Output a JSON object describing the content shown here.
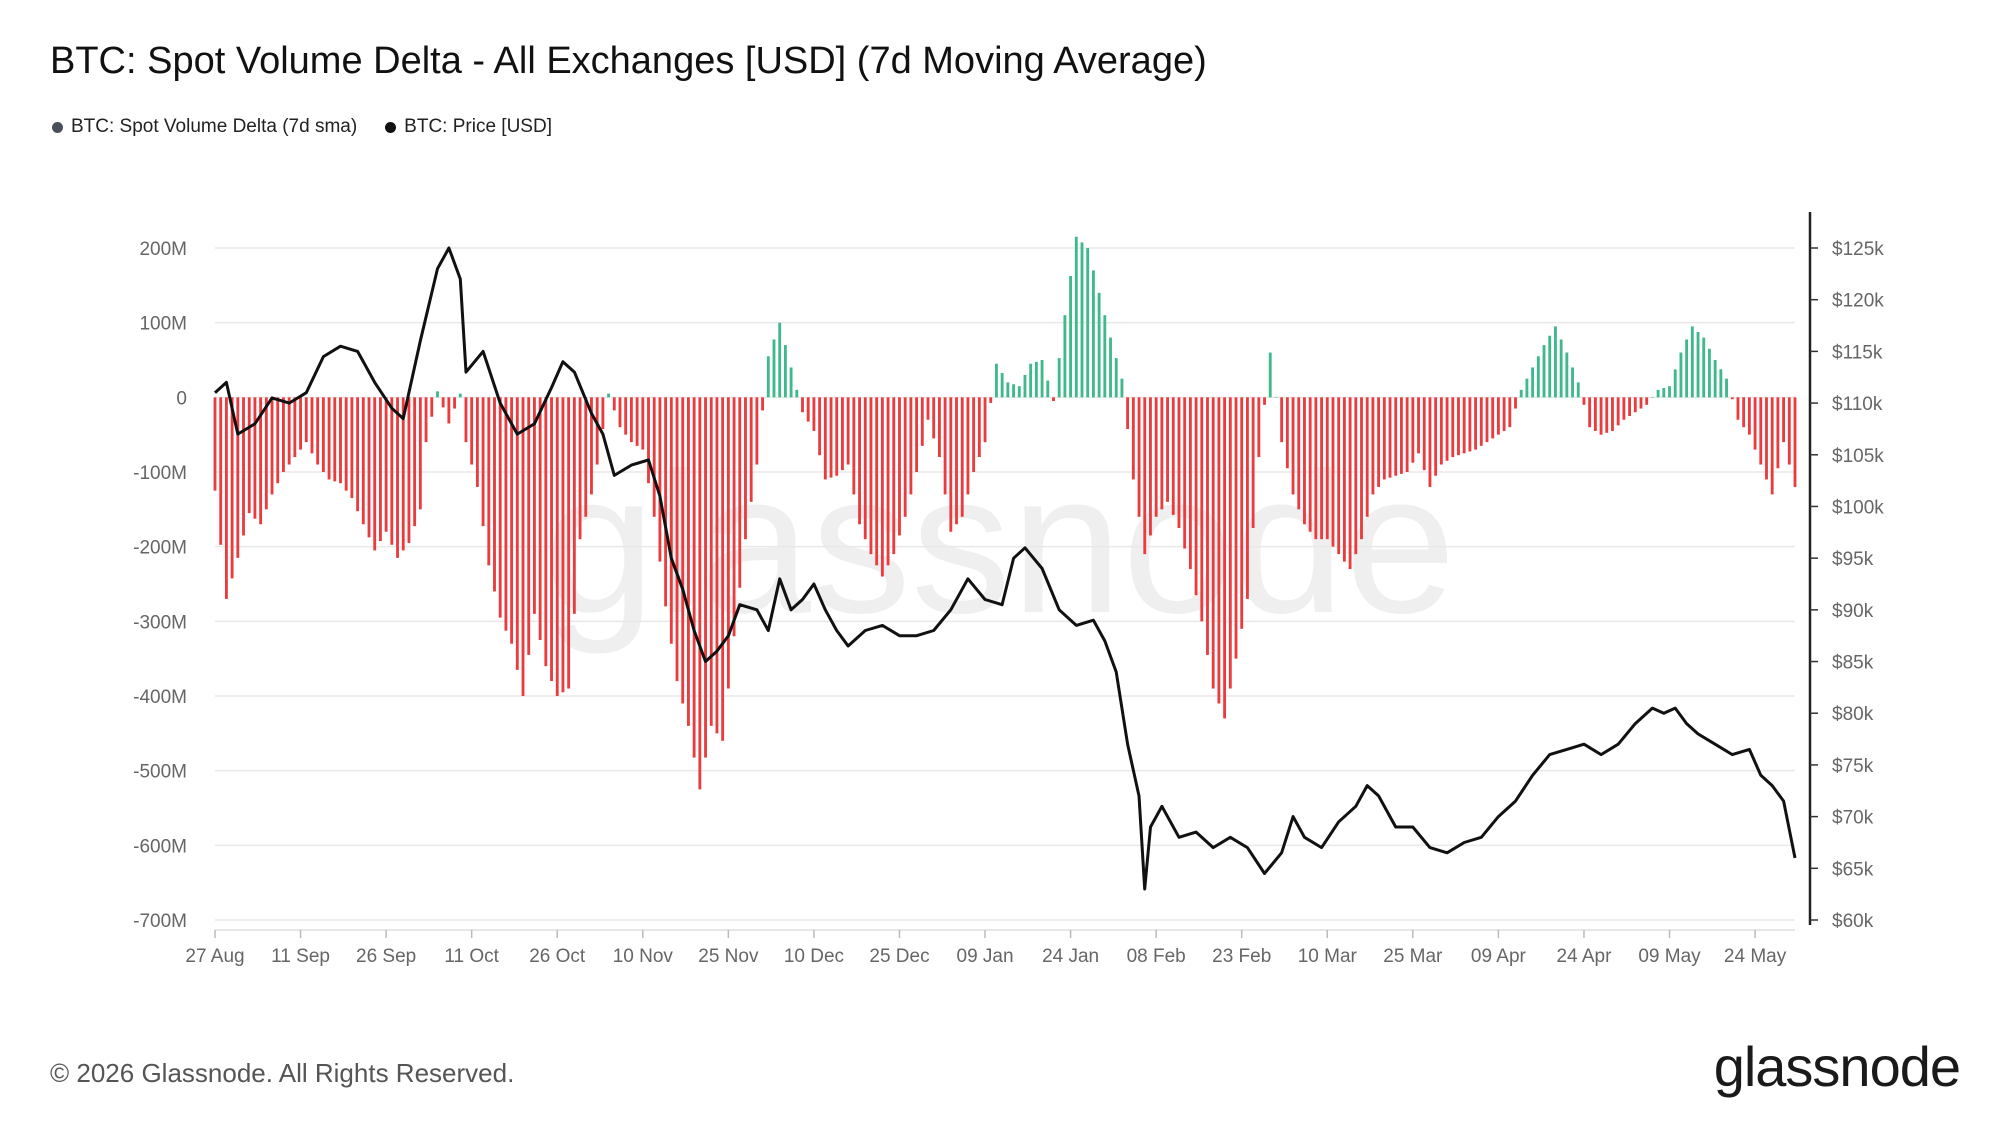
{
  "title": "BTC: Spot Volume Delta - All Exchanges [USD] (7d Moving Average)",
  "legend": [
    {
      "label": "BTC: Spot Volume Delta (7d sma)",
      "color": "#4a4f5c"
    },
    {
      "label": "BTC: Price [USD]",
      "color": "#111111"
    }
  ],
  "footer": "© 2026 Glassnode. All Rights Reserved.",
  "logo": "glassnode",
  "watermark": "glassnode",
  "colors": {
    "positive": "#3fb98b",
    "negative": "#ea3c3f",
    "price": "#111111",
    "grid": "#e9e9e9"
  },
  "chart_data": {
    "type": "bar",
    "x_start": "2025-08-27",
    "x_end": "2026-05-31",
    "x_ticks": [
      "27 Aug",
      "11 Sep",
      "26 Sep",
      "11 Oct",
      "26 Oct",
      "10 Nov",
      "25 Nov",
      "10 Dec",
      "25 Dec",
      "09 Jan",
      "24 Jan",
      "08 Feb",
      "23 Feb",
      "10 Mar",
      "25 Mar",
      "09 Apr",
      "24 Apr",
      "09 May",
      "24 May"
    ],
    "y_left_ticks": [
      "200M",
      "100M",
      "0",
      "-100M",
      "-200M",
      "-300M",
      "-400M",
      "-500M",
      "-600M",
      "-700M"
    ],
    "y_right_ticks": [
      "$125k",
      "$120k",
      "$115k",
      "$110k",
      "$105k",
      "$100k",
      "$95k",
      "$90k",
      "$85k",
      "$80k",
      "$75k",
      "$70k",
      "$65k",
      "$60k"
    ],
    "ylim_left": [
      -700,
      200
    ],
    "ylim_right": [
      60,
      125
    ],
    "left_unit": "USD millions",
    "right_unit": "USD thousands",
    "series": [
      {
        "name": "BTC: Spot Volume Delta (7d sma)",
        "axis": "left",
        "points": [
          [
            "2025-08-27",
            -125
          ],
          [
            "2025-08-29",
            -270
          ],
          [
            "2025-08-31",
            -215
          ],
          [
            "2025-09-02",
            -155
          ],
          [
            "2025-09-04",
            -170
          ],
          [
            "2025-09-06",
            -130
          ],
          [
            "2025-09-08",
            -100
          ],
          [
            "2025-09-10",
            -80
          ],
          [
            "2025-09-12",
            -60
          ],
          [
            "2025-09-14",
            -90
          ],
          [
            "2025-09-16",
            -110
          ],
          [
            "2025-09-18",
            -115
          ],
          [
            "2025-09-20",
            -135
          ],
          [
            "2025-09-22",
            -170
          ],
          [
            "2025-09-24",
            -205
          ],
          [
            "2025-09-26",
            -180
          ],
          [
            "2025-09-28",
            -215
          ],
          [
            "2025-09-30",
            -195
          ],
          [
            "2025-10-02",
            -150
          ],
          [
            "2025-10-03",
            -60
          ],
          [
            "2025-10-05",
            8
          ],
          [
            "2025-10-07",
            -35
          ],
          [
            "2025-10-09",
            5
          ],
          [
            "2025-10-10",
            -60
          ],
          [
            "2025-10-12",
            -120
          ],
          [
            "2025-10-14",
            -225
          ],
          [
            "2025-10-16",
            -295
          ],
          [
            "2025-10-18",
            -330
          ],
          [
            "2025-10-20",
            -400
          ],
          [
            "2025-10-22",
            -290
          ],
          [
            "2025-10-24",
            -360
          ],
          [
            "2025-10-26",
            -400
          ],
          [
            "2025-10-28",
            -390
          ],
          [
            "2025-10-30",
            -190
          ],
          [
            "2025-11-01",
            -130
          ],
          [
            "2025-11-02",
            -90
          ],
          [
            "2025-11-04",
            5
          ],
          [
            "2025-11-06",
            -40
          ],
          [
            "2025-11-08",
            -60
          ],
          [
            "2025-11-10",
            -70
          ],
          [
            "2025-11-12",
            -160
          ],
          [
            "2025-11-14",
            -280
          ],
          [
            "2025-11-16",
            -380
          ],
          [
            "2025-11-18",
            -440
          ],
          [
            "2025-11-20",
            -525
          ],
          [
            "2025-11-22",
            -440
          ],
          [
            "2025-11-24",
            -460
          ],
          [
            "2025-11-26",
            -320
          ],
          [
            "2025-11-28",
            -190
          ],
          [
            "2025-11-30",
            -90
          ],
          [
            "2025-12-02",
            55
          ],
          [
            "2025-12-04",
            100
          ],
          [
            "2025-12-06",
            40
          ],
          [
            "2025-12-08",
            -20
          ],
          [
            "2025-12-10",
            -45
          ],
          [
            "2025-12-12",
            -110
          ],
          [
            "2025-12-14",
            -105
          ],
          [
            "2025-12-16",
            -90
          ],
          [
            "2025-12-18",
            -170
          ],
          [
            "2025-12-20",
            -210
          ],
          [
            "2025-12-22",
            -240
          ],
          [
            "2025-12-24",
            -210
          ],
          [
            "2025-12-26",
            -160
          ],
          [
            "2025-12-28",
            -100
          ],
          [
            "2025-12-30",
            -30
          ],
          [
            "2026-01-01",
            -80
          ],
          [
            "2026-01-03",
            -180
          ],
          [
            "2026-01-05",
            -160
          ],
          [
            "2026-01-07",
            -100
          ],
          [
            "2026-01-09",
            -60
          ],
          [
            "2026-01-11",
            45
          ],
          [
            "2026-01-13",
            20
          ],
          [
            "2026-01-15",
            15
          ],
          [
            "2026-01-17",
            45
          ],
          [
            "2026-01-19",
            50
          ],
          [
            "2026-01-21",
            -5
          ],
          [
            "2026-01-23",
            110
          ],
          [
            "2026-01-25",
            215
          ],
          [
            "2026-01-27",
            200
          ],
          [
            "2026-01-29",
            140
          ],
          [
            "2026-01-31",
            80
          ],
          [
            "2026-02-02",
            25
          ],
          [
            "2026-02-04",
            -110
          ],
          [
            "2026-02-06",
            -210
          ],
          [
            "2026-02-08",
            -160
          ],
          [
            "2026-02-10",
            -140
          ],
          [
            "2026-02-12",
            -175
          ],
          [
            "2026-02-14",
            -230
          ],
          [
            "2026-02-16",
            -300
          ],
          [
            "2026-02-18",
            -390
          ],
          [
            "2026-02-20",
            -430
          ],
          [
            "2026-02-22",
            -350
          ],
          [
            "2026-02-24",
            -270
          ],
          [
            "2026-02-26",
            -80
          ],
          [
            "2026-02-28",
            60
          ],
          [
            "2026-03-02",
            -60
          ],
          [
            "2026-03-04",
            -130
          ],
          [
            "2026-03-06",
            -170
          ],
          [
            "2026-03-08",
            -190
          ],
          [
            "2026-03-10",
            -190
          ],
          [
            "2026-03-12",
            -210
          ],
          [
            "2026-03-14",
            -230
          ],
          [
            "2026-03-16",
            -190
          ],
          [
            "2026-03-18",
            -130
          ],
          [
            "2026-03-20",
            -110
          ],
          [
            "2026-03-22",
            -105
          ],
          [
            "2026-03-24",
            -100
          ],
          [
            "2026-03-26",
            -75
          ],
          [
            "2026-03-28",
            -120
          ],
          [
            "2026-03-30",
            -90
          ],
          [
            "2026-04-01",
            -80
          ],
          [
            "2026-04-03",
            -75
          ],
          [
            "2026-04-05",
            -70
          ],
          [
            "2026-04-07",
            -60
          ],
          [
            "2026-04-09",
            -50
          ],
          [
            "2026-04-11",
            -40
          ],
          [
            "2026-04-13",
            10
          ],
          [
            "2026-04-15",
            40
          ],
          [
            "2026-04-17",
            70
          ],
          [
            "2026-04-19",
            95
          ],
          [
            "2026-04-21",
            60
          ],
          [
            "2026-04-23",
            20
          ],
          [
            "2026-04-25",
            -40
          ],
          [
            "2026-04-27",
            -50
          ],
          [
            "2026-04-29",
            -45
          ],
          [
            "2026-05-01",
            -30
          ],
          [
            "2026-05-03",
            -20
          ],
          [
            "2026-05-05",
            -10
          ],
          [
            "2026-05-07",
            10
          ],
          [
            "2026-05-09",
            15
          ],
          [
            "2026-05-11",
            60
          ],
          [
            "2026-05-13",
            95
          ],
          [
            "2026-05-15",
            80
          ],
          [
            "2026-05-17",
            50
          ],
          [
            "2026-05-19",
            25
          ],
          [
            "2026-05-21",
            -30
          ],
          [
            "2026-05-23",
            -50
          ],
          [
            "2026-05-25",
            -90
          ],
          [
            "2026-05-27",
            -130
          ],
          [
            "2026-05-29",
            -60
          ],
          [
            "2026-05-31",
            -120
          ]
        ]
      },
      {
        "name": "BTC: Price [USD]",
        "axis": "right",
        "points": [
          [
            "2025-08-27",
            111
          ],
          [
            "2025-08-29",
            112
          ],
          [
            "2025-08-31",
            107
          ],
          [
            "2025-09-03",
            108
          ],
          [
            "2025-09-06",
            110.5
          ],
          [
            "2025-09-09",
            110
          ],
          [
            "2025-09-12",
            111
          ],
          [
            "2025-09-15",
            114.5
          ],
          [
            "2025-09-18",
            115.5
          ],
          [
            "2025-09-21",
            115
          ],
          [
            "2025-09-24",
            112
          ],
          [
            "2025-09-27",
            109.5
          ],
          [
            "2025-09-29",
            108.5
          ],
          [
            "2025-10-02",
            116
          ],
          [
            "2025-10-05",
            123
          ],
          [
            "2025-10-07",
            125
          ],
          [
            "2025-10-09",
            122
          ],
          [
            "2025-10-10",
            113
          ],
          [
            "2025-10-13",
            115
          ],
          [
            "2025-10-16",
            110
          ],
          [
            "2025-10-19",
            107
          ],
          [
            "2025-10-22",
            108
          ],
          [
            "2025-10-25",
            111.5
          ],
          [
            "2025-10-27",
            114
          ],
          [
            "2025-10-29",
            113
          ],
          [
            "2025-11-01",
            109
          ],
          [
            "2025-11-03",
            107
          ],
          [
            "2025-11-05",
            103
          ],
          [
            "2025-11-08",
            104
          ],
          [
            "2025-11-11",
            104.5
          ],
          [
            "2025-11-13",
            101
          ],
          [
            "2025-11-15",
            95
          ],
          [
            "2025-11-17",
            92
          ],
          [
            "2025-11-19",
            88
          ],
          [
            "2025-11-21",
            85
          ],
          [
            "2025-11-23",
            86
          ],
          [
            "2025-11-25",
            87.5
          ],
          [
            "2025-11-27",
            90.5
          ],
          [
            "2025-11-30",
            90
          ],
          [
            "2025-12-02",
            88
          ],
          [
            "2025-12-04",
            93
          ],
          [
            "2025-12-06",
            90
          ],
          [
            "2025-12-08",
            91
          ],
          [
            "2025-12-10",
            92.5
          ],
          [
            "2025-12-12",
            90
          ],
          [
            "2025-12-14",
            88
          ],
          [
            "2025-12-16",
            86.5
          ],
          [
            "2025-12-19",
            88
          ],
          [
            "2025-12-22",
            88.5
          ],
          [
            "2025-12-25",
            87.5
          ],
          [
            "2025-12-28",
            87.5
          ],
          [
            "2025-12-31",
            88
          ],
          [
            "2026-01-03",
            90
          ],
          [
            "2026-01-06",
            93
          ],
          [
            "2026-01-09",
            91
          ],
          [
            "2026-01-12",
            90.5
          ],
          [
            "2026-01-14",
            95
          ],
          [
            "2026-01-16",
            96
          ],
          [
            "2026-01-19",
            94
          ],
          [
            "2026-01-22",
            90
          ],
          [
            "2026-01-25",
            88.5
          ],
          [
            "2026-01-28",
            89
          ],
          [
            "2026-01-30",
            87
          ],
          [
            "2026-02-01",
            84
          ],
          [
            "2026-02-03",
            77
          ],
          [
            "2026-02-05",
            72
          ],
          [
            "2026-02-06",
            63
          ],
          [
            "2026-02-07",
            69
          ],
          [
            "2026-02-09",
            71
          ],
          [
            "2026-02-12",
            68
          ],
          [
            "2026-02-15",
            68.5
          ],
          [
            "2026-02-18",
            67
          ],
          [
            "2026-02-21",
            68
          ],
          [
            "2026-02-24",
            67
          ],
          [
            "2026-02-27",
            64.5
          ],
          [
            "2026-03-02",
            66.5
          ],
          [
            "2026-03-04",
            70
          ],
          [
            "2026-03-06",
            68
          ],
          [
            "2026-03-09",
            67
          ],
          [
            "2026-03-12",
            69.5
          ],
          [
            "2026-03-15",
            71
          ],
          [
            "2026-03-17",
            73
          ],
          [
            "2026-03-19",
            72
          ],
          [
            "2026-03-22",
            69
          ],
          [
            "2026-03-25",
            69
          ],
          [
            "2026-03-28",
            67
          ],
          [
            "2026-03-31",
            66.5
          ],
          [
            "2026-04-03",
            67.5
          ],
          [
            "2026-04-06",
            68
          ],
          [
            "2026-04-09",
            70
          ],
          [
            "2026-04-12",
            71.5
          ],
          [
            "2026-04-15",
            74
          ],
          [
            "2026-04-18",
            76
          ],
          [
            "2026-04-21",
            76.5
          ],
          [
            "2026-04-24",
            77
          ],
          [
            "2026-04-27",
            76
          ],
          [
            "2026-04-30",
            77
          ],
          [
            "2026-05-03",
            79
          ],
          [
            "2026-05-06",
            80.5
          ],
          [
            "2026-05-08",
            80
          ],
          [
            "2026-05-10",
            80.5
          ],
          [
            "2026-05-12",
            79
          ],
          [
            "2026-05-14",
            78
          ],
          [
            "2026-05-17",
            77
          ],
          [
            "2026-05-20",
            76
          ],
          [
            "2026-05-23",
            76.5
          ],
          [
            "2026-05-25",
            74
          ],
          [
            "2026-05-27",
            73
          ],
          [
            "2026-05-29",
            71.5
          ],
          [
            "2026-05-31",
            66
          ]
        ]
      }
    ]
  }
}
